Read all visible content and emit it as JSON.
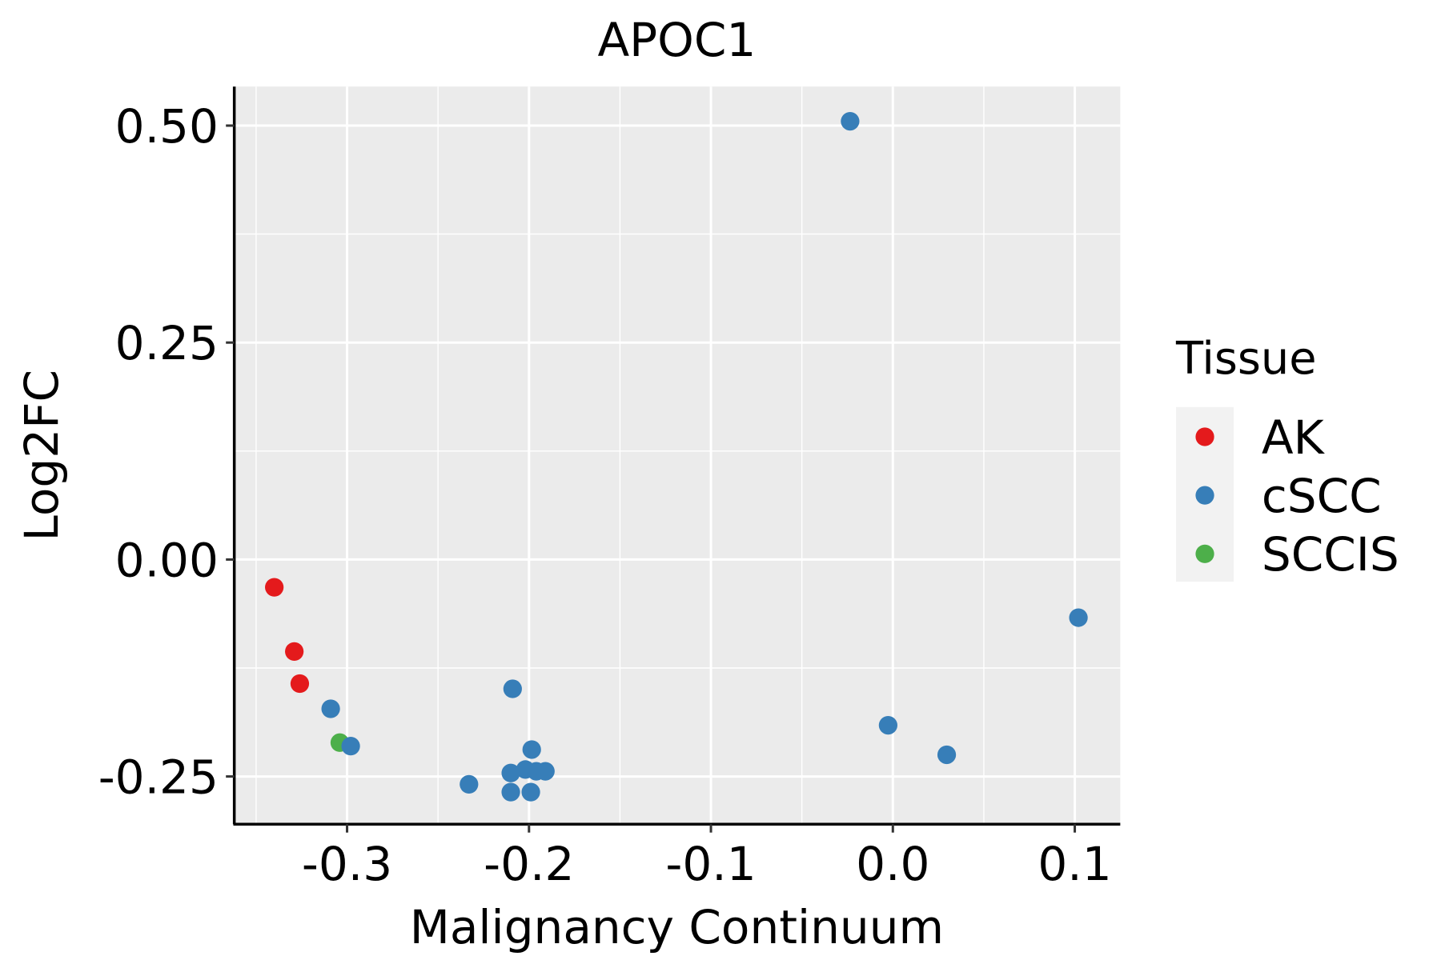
{
  "chart_data": {
    "type": "scatter",
    "title": "APOC1",
    "xlabel": "Malignancy Continuum",
    "ylabel": "Log2FC",
    "xlim": [
      -0.362,
      0.125
    ],
    "ylim": [
      -0.305,
      0.545
    ],
    "xticks": [
      -0.3,
      -0.2,
      -0.1,
      0.0,
      0.1
    ],
    "xtick_labels": [
      "-0.3",
      "-0.2",
      "-0.1",
      "0.0",
      "0.1"
    ],
    "yticks": [
      -0.25,
      0.0,
      0.25,
      0.5
    ],
    "ytick_labels": [
      "-0.25",
      "0.00",
      "0.25",
      "0.50"
    ],
    "grid": true,
    "legend": {
      "title": "Tissue",
      "placement": "right",
      "entries": [
        "AK",
        "cSCC",
        "SCCIS"
      ]
    },
    "colors": {
      "AK": "#E41A1C",
      "cSCC": "#377EB8",
      "SCCIS": "#4DAF4A",
      "panel": "#EBEBEB",
      "legend_key": "#F2F2F2"
    },
    "series": [
      {
        "name": "AK",
        "points": [
          [
            -0.34,
            -0.032
          ],
          [
            -0.329,
            -0.106
          ],
          [
            -0.326,
            -0.143
          ]
        ]
      },
      {
        "name": "SCCIS",
        "points": [
          [
            -0.304,
            -0.211
          ]
        ]
      },
      {
        "name": "cSCC",
        "points": [
          [
            -0.0235,
            0.505
          ],
          [
            0.102,
            -0.067
          ],
          [
            -0.0026,
            -0.191
          ],
          [
            0.0296,
            -0.225
          ],
          [
            -0.209,
            -0.149
          ],
          [
            -0.309,
            -0.172
          ],
          [
            -0.298,
            -0.215
          ],
          [
            -0.233,
            -0.259
          ],
          [
            -0.1985,
            -0.219
          ],
          [
            -0.21,
            -0.246
          ],
          [
            -0.202,
            -0.242
          ],
          [
            -0.196,
            -0.244
          ],
          [
            -0.191,
            -0.244
          ],
          [
            -0.21,
            -0.268
          ],
          [
            -0.199,
            -0.268
          ]
        ]
      }
    ]
  }
}
